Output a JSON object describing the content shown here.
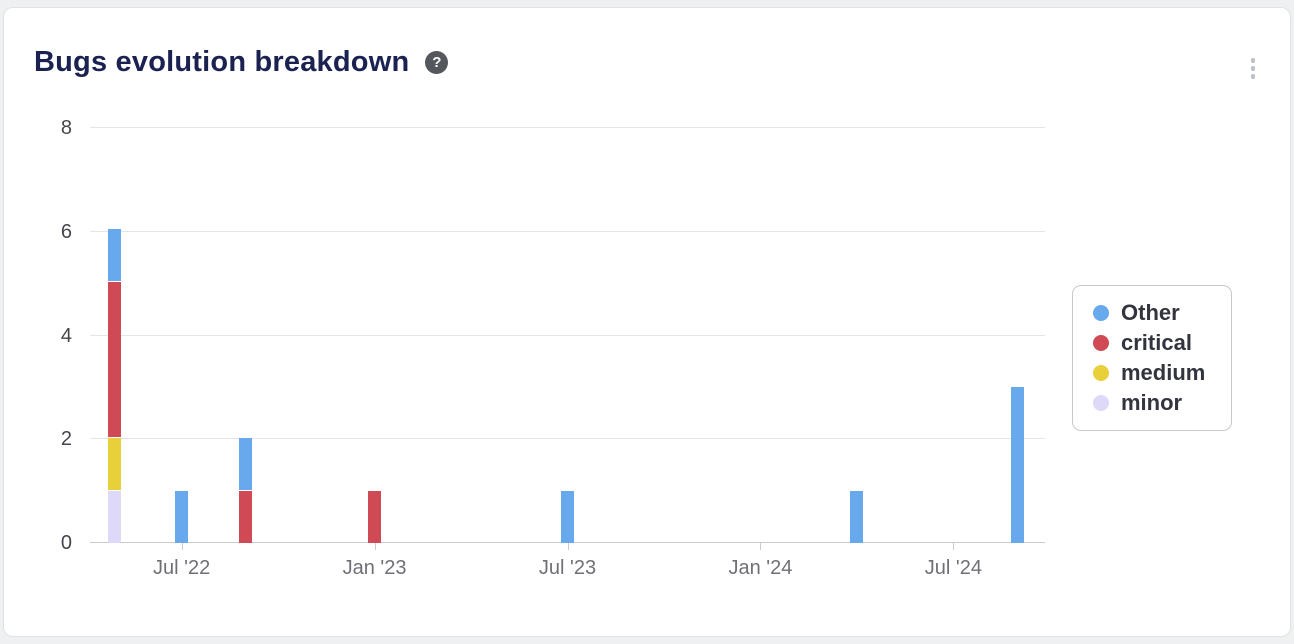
{
  "card": {
    "title": "Bugs evolution breakdown",
    "help_glyph": "?"
  },
  "chart_data": {
    "type": "bar",
    "stacked": true,
    "title": "Bugs evolution breakdown",
    "legend_position": "right",
    "x_axis": {
      "unit": "months relative to Jul '22",
      "range": [
        -2.85,
        26.85
      ],
      "grid": false,
      "ticks": [
        {
          "label": "Jul '22",
          "x": 0
        },
        {
          "label": "Jan '23",
          "x": 6
        },
        {
          "label": "Jul '23",
          "x": 12
        },
        {
          "label": "Jan '24",
          "x": 18
        },
        {
          "label": "Jul '24",
          "x": 24
        }
      ]
    },
    "y_axis": {
      "range": [
        0,
        8
      ],
      "grid": true,
      "ticks": [
        0,
        2,
        4,
        6,
        8
      ]
    },
    "series": [
      {
        "name": "Other",
        "color": "#68a9ee"
      },
      {
        "name": "critical",
        "color": "#cf4a54"
      },
      {
        "name": "medium",
        "color": "#e7d03a"
      },
      {
        "name": "minor",
        "color": "#ded9f8"
      }
    ],
    "bars": [
      {
        "label": "May '22",
        "x": -2.1,
        "total": 6,
        "segments": [
          {
            "series": "minor",
            "value": 1
          },
          {
            "series": "medium",
            "value": 1
          },
          {
            "series": "critical",
            "value": 3
          },
          {
            "series": "Other",
            "value": 1
          }
        ]
      },
      {
        "label": "Jul '22",
        "x": 0,
        "total": 1,
        "segments": [
          {
            "series": "Other",
            "value": 1
          }
        ]
      },
      {
        "label": "Sep '22",
        "x": 2,
        "total": 2,
        "segments": [
          {
            "series": "critical",
            "value": 1
          },
          {
            "series": "Other",
            "value": 1
          }
        ]
      },
      {
        "label": "Jan '23",
        "x": 6,
        "total": 1,
        "segments": [
          {
            "series": "critical",
            "value": 1
          }
        ]
      },
      {
        "label": "Jul '23",
        "x": 12,
        "total": 1,
        "segments": [
          {
            "series": "Other",
            "value": 1
          }
        ]
      },
      {
        "label": "Apr '24",
        "x": 21,
        "total": 1,
        "segments": [
          {
            "series": "Other",
            "value": 1
          }
        ]
      },
      {
        "label": "Sep '24",
        "x": 26,
        "total": 3,
        "segments": [
          {
            "series": "Other",
            "value": 3
          }
        ]
      }
    ]
  }
}
